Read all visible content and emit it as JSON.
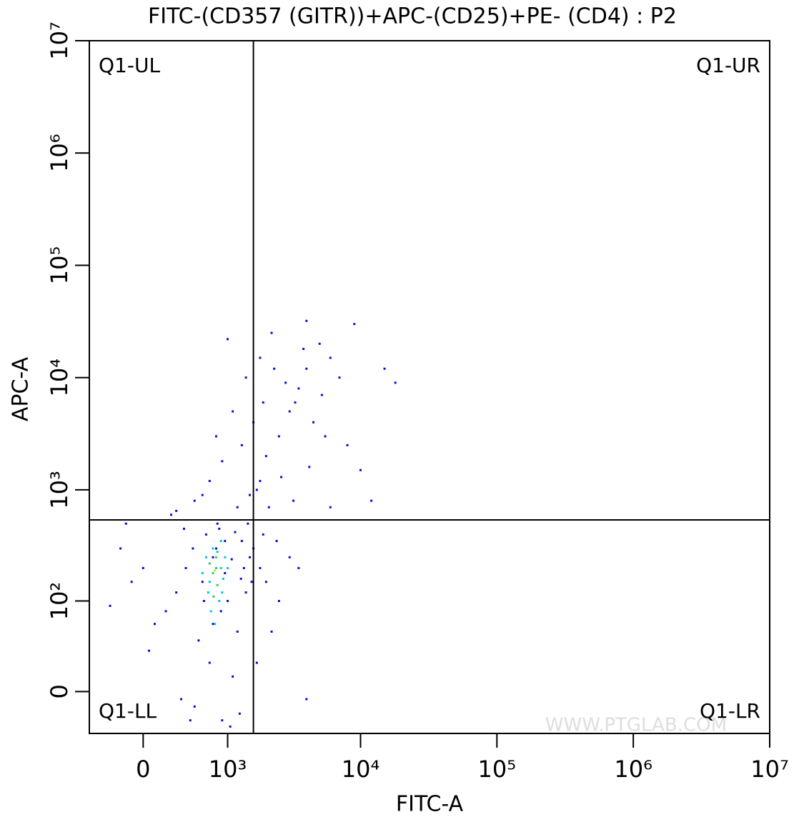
{
  "chart_data": {
    "type": "scatter",
    "title": "FITC-(CD357 (GITR))+APC-(CD25)+PE- (CD4) : P2",
    "x_label": "FITC-A",
    "y_label": "APC-A",
    "xscale": "biexponential",
    "yscale": "biexponential",
    "xlim": [
      -530,
      10000000
    ],
    "ylim": [
      -31,
      10000000
    ],
    "xticks": [
      0,
      {
        "value": 1000,
        "label": "10³"
      },
      {
        "value": 10000,
        "label": "10⁴"
      },
      {
        "value": 100000,
        "label": "10⁵"
      },
      {
        "value": 1000000,
        "label": "10⁶"
      },
      {
        "value": 10000000,
        "label": "10⁷"
      }
    ],
    "yticks": [
      0,
      {
        "value": 100,
        "label": "10²"
      },
      {
        "value": 1000,
        "label": "10³"
      },
      {
        "value": 10000,
        "label": "10⁴"
      },
      {
        "value": 100000,
        "label": "10⁵"
      },
      {
        "value": 1000000,
        "label": "10⁶"
      },
      {
        "value": 10000000,
        "label": "10⁷"
      }
    ],
    "gates": {
      "x": 1600,
      "y": 540
    },
    "quadrant_labels": {
      "ul": "Q1-UL",
      "ur": "Q1-UR",
      "ll": "Q1-LL",
      "lr": "Q1-LR"
    },
    "watermark": "WWW.PTGLAB.COM",
    "series": [
      {
        "color": "#0a0ad8",
        "x": [
          400,
          600,
          800,
          1000,
          1200,
          700,
          500,
          900,
          1100,
          650,
          850,
          1300,
          1500,
          300,
          200,
          100,
          -100,
          -300,
          -200,
          0,
          50,
          350,
          750,
          950,
          1400,
          1600,
          1800,
          2000,
          2500,
          3000,
          3500,
          4000,
          2200,
          1700,
          1900,
          2400,
          1200,
          1500,
          1800,
          2000,
          2500,
          3000,
          3500,
          4000,
          5000,
          6000,
          7000,
          2200,
          1800,
          2800,
          3300,
          4500,
          5500,
          8000,
          10000,
          12000,
          15000,
          18000,
          9000,
          4000,
          1600,
          1300,
          900,
          700,
          500,
          300,
          1000,
          1400,
          1100,
          1700,
          2600,
          3200,
          6000,
          4200,
          2100,
          1900,
          2300,
          3800,
          5200,
          -150,
          250,
          600,
          800,
          1450,
          1550,
          1250,
          1050,
          450,
          550,
          750,
          950,
          1150,
          1350,
          620,
          880,
          1080,
          1280,
          480,
          380,
          820
        ],
        "y": [
          200,
          150,
          300,
          100,
          50,
          20,
          -10,
          -20,
          10,
          400,
          450,
          350,
          250,
          120,
          80,
          60,
          150,
          90,
          300,
          200,
          30,
          -5,
          60,
          180,
          120,
          300,
          200,
          150,
          100,
          250,
          200,
          -5,
          50,
          20,
          400,
          350,
          700,
          900,
          1200,
          2000,
          3000,
          5000,
          8000,
          12000,
          20000,
          15000,
          10000,
          25000,
          15000,
          9000,
          6000,
          4000,
          3000,
          2500,
          1500,
          800,
          12000,
          9000,
          30000,
          32000,
          4000,
          2500,
          1800,
          1200,
          800,
          650,
          22000,
          10000,
          5000,
          1000,
          1300,
          800,
          700,
          1600,
          700,
          6000,
          12000,
          18000,
          7000,
          500,
          600,
          900,
          3000,
          500,
          150,
          -15,
          -25,
          -20,
          40,
          250,
          350,
          420,
          200,
          100,
          80,
          240,
          160,
          300,
          450,
          500
        ]
      },
      {
        "color": "#00c4e8",
        "x": [
          700,
          800,
          900,
          650,
          750,
          850,
          950,
          600,
          1000,
          720,
          880,
          780,
          680,
          920,
          820
        ],
        "y": [
          150,
          200,
          120,
          250,
          300,
          100,
          250,
          180,
          200,
          80,
          350,
          60,
          120,
          160,
          280
        ]
      },
      {
        "color": "#30c860",
        "x": [
          750,
          820,
          700,
          880,
          800,
          760
        ],
        "y": [
          180,
          140,
          220,
          200,
          250,
          110
        ]
      },
      {
        "color": "#e0e010",
        "x": [
          780
        ],
        "y": [
          190
        ]
      }
    ]
  }
}
